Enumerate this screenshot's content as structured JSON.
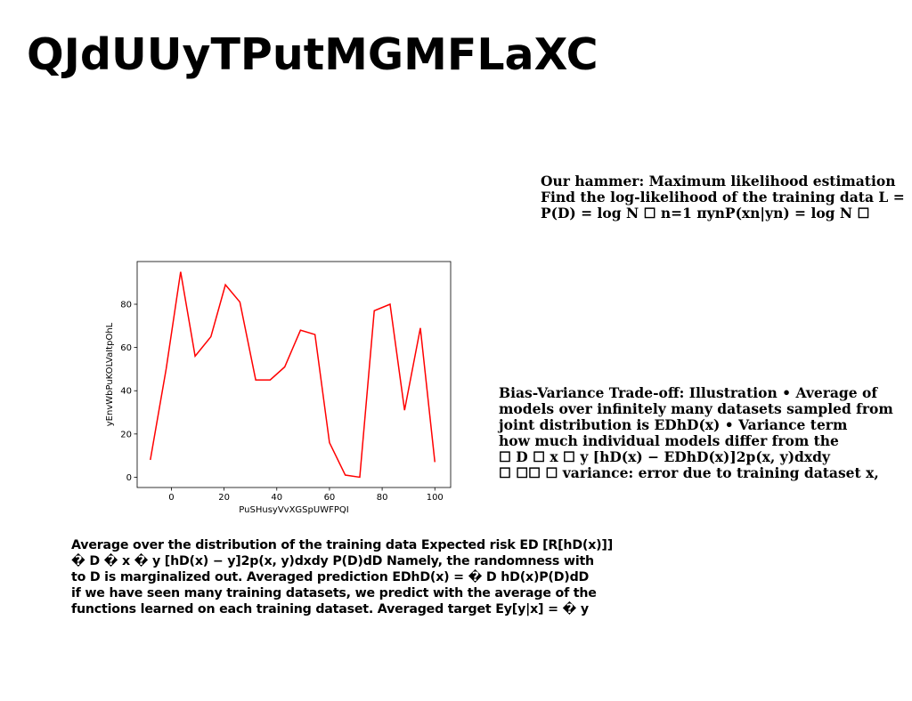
{
  "title": "QJdUUyTPutMGMFLaXC",
  "hammer_block": {
    "lines": [
      "Our hammer: Maximum likelihood estimation",
      "Find the log-likelihood of the training data L =",
      "P(D) = log N ☐ n=1 πynP(xn|yn) = log N ☐"
    ]
  },
  "bias_variance_block": {
    "lines": [
      "Bias-Variance Trade-off: Illustration • Average of",
      "models over infinitely many datasets sampled from",
      "joint distribution is EDhD(x) • Variance term",
      "how much individual models differ from the",
      "☐ D ☐ x ☐ y [hD(x) − EDhD(x)]2p(x, y)dxdy",
      "☐ ☐☐ ☐ variance: error due to training dataset x,"
    ]
  },
  "average_block": {
    "lines": [
      "Average over the distribution of the training data Expected risk ED [R[hD(x)]]",
      "� D � x � y [hD(x) − y]2p(x, y)dxdy P(D)dD Namely, the randomness with",
      "to D is marginalized out. Averaged prediction EDhD(x) = � D hD(x)P(D)dD",
      "if we have seen many training datasets, we predict with the average of the",
      "functions learned on each training dataset. Averaged target Ey[y|x] = � y"
    ]
  },
  "chart_data": {
    "type": "line",
    "title": "",
    "xlabel": "PuSHusyVvXGSpUWFPQI",
    "ylabel": "yEnvWbPuKOLVaItpOhL",
    "xlim": [
      -13,
      106
    ],
    "ylim": [
      -4.75,
      99.75
    ],
    "xticks": [
      0,
      20,
      40,
      60,
      80,
      100
    ],
    "yticks": [
      0,
      20,
      40,
      60,
      80
    ],
    "grid": false,
    "series": [
      {
        "color": "#ff0000",
        "x": [
          -8,
          -2,
          3.5,
          9,
          15,
          20.5,
          26,
          32,
          37.5,
          43,
          49,
          54.5,
          60,
          66,
          71.5,
          77,
          83,
          88.5,
          94.5,
          100
        ],
        "y": [
          8,
          50,
          95,
          56,
          65,
          89,
          81,
          45,
          45,
          51,
          68,
          66,
          16,
          1,
          0,
          77,
          80,
          31,
          69,
          7
        ]
      }
    ]
  }
}
